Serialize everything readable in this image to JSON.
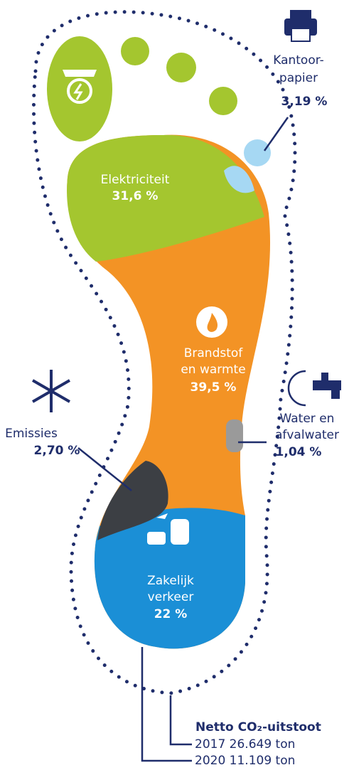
{
  "segments": [
    {
      "label": [
        "Elektriciteit"
      ],
      "value": "31,6 %"
    },
    {
      "label": [
        "Brandstof",
        "en warmte"
      ],
      "value": "39,5 %"
    },
    {
      "label": [
        "Zakelijk",
        "verkeer"
      ],
      "value": "22 %"
    },
    {
      "label": [
        "Emissies"
      ],
      "value": "2,70 %"
    },
    {
      "label": [
        "Water en",
        "afvalwater"
      ],
      "value": "1,04 %"
    },
    {
      "label": [
        "Kantoor-",
        "papier"
      ],
      "value": "3,19 %"
    }
  ],
  "footer": {
    "title": "Netto CO₂-uitstoot",
    "rows": [
      "2017 26.649 ton",
      "2020 11.109 ton"
    ]
  }
}
